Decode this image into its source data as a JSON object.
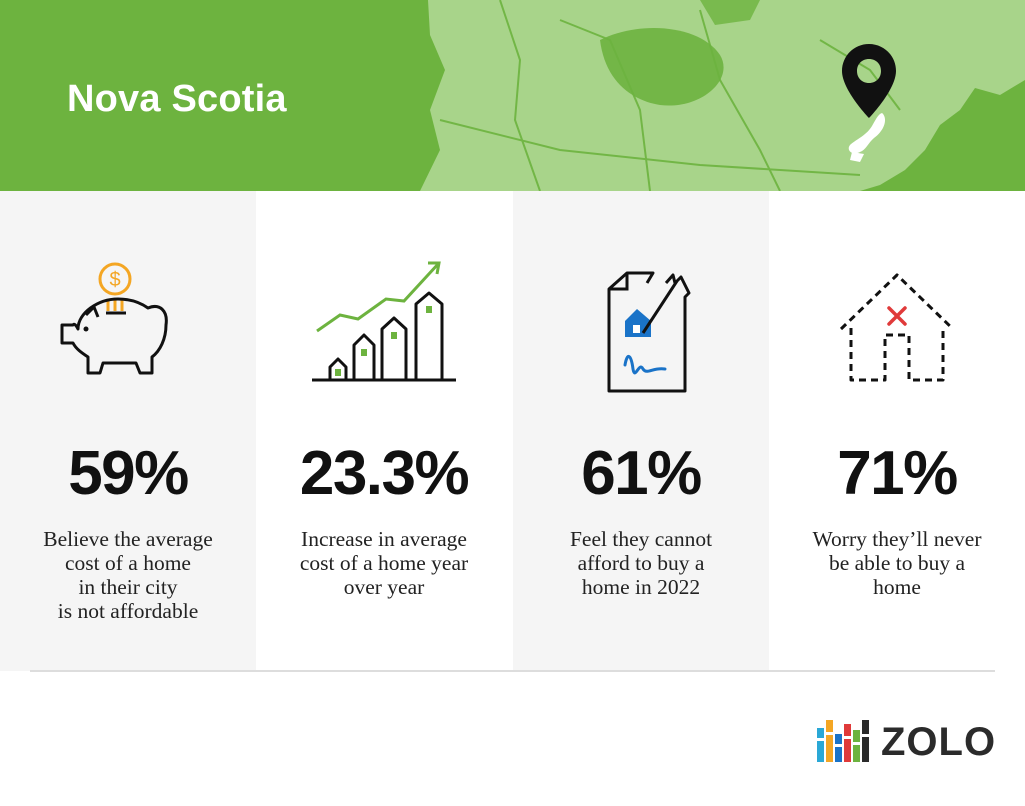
{
  "banner": {
    "title": "Nova Scotia",
    "colors": {
      "background": "#6db33f",
      "map": "#a8d48a",
      "pin": "#111111"
    },
    "map_icon": "canada-map",
    "pin_icon": "location-pin-icon"
  },
  "stats": [
    {
      "icon": "piggy-bank-icon",
      "value": "59%",
      "label": "Believe the average\ncost of a home\nin their city\nis not affordable"
    },
    {
      "icon": "rising-houses-chart-icon",
      "value": "23.3%",
      "label": "Increase in average\ncost of a home year\nover year"
    },
    {
      "icon": "torn-house-contract-icon",
      "value": "61%",
      "label": "Feel they cannot\nafford to buy a\nhome in 2022"
    },
    {
      "icon": "crossed-out-house-icon",
      "value": "71%",
      "label": "Worry they’ll never\nbe able to buy a\nhome"
    }
  ],
  "brand": {
    "logo_text": "ZOLO",
    "logo_icon": "zolo-bars-logo"
  },
  "colors": {
    "accent_green": "#6db33f",
    "coin_orange": "#f4a623",
    "contract_blue": "#1a73c8",
    "x_red": "#e03a3a"
  }
}
